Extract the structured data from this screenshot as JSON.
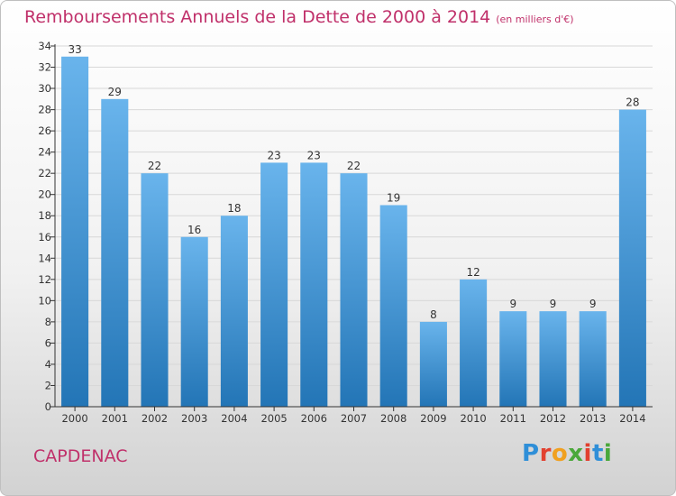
{
  "header": {
    "title": "Remboursements Annuels de la Dette de 2000 à 2014",
    "subtitle": "(en milliers d'€)"
  },
  "commune": "CAPDENAC",
  "logo": {
    "text": "Proxiti",
    "letter_colors": [
      "#2f8fd8",
      "#e2402f",
      "#f0a020",
      "#4aa83a",
      "#e2402f",
      "#2f8fd8",
      "#4aa83a"
    ]
  },
  "colors": {
    "bar_top": "#69b4ec",
    "bar_bottom": "#2375b6",
    "axis": "#333333",
    "grid": "#d8d8d8",
    "title": "#c0306a"
  },
  "chart_data": {
    "type": "bar",
    "categories": [
      "2000",
      "2001",
      "2002",
      "2003",
      "2004",
      "2005",
      "2006",
      "2007",
      "2008",
      "2009",
      "2010",
      "2011",
      "2012",
      "2013",
      "2014"
    ],
    "values": [
      33,
      29,
      22,
      16,
      18,
      23,
      23,
      22,
      19,
      8,
      12,
      9,
      9,
      9,
      28
    ],
    "ylim": [
      0,
      34
    ],
    "yticks": [
      0,
      2,
      4,
      6,
      8,
      10,
      12,
      14,
      16,
      18,
      20,
      22,
      24,
      26,
      28,
      30,
      32,
      34
    ],
    "data_labels": true,
    "grid": true
  }
}
